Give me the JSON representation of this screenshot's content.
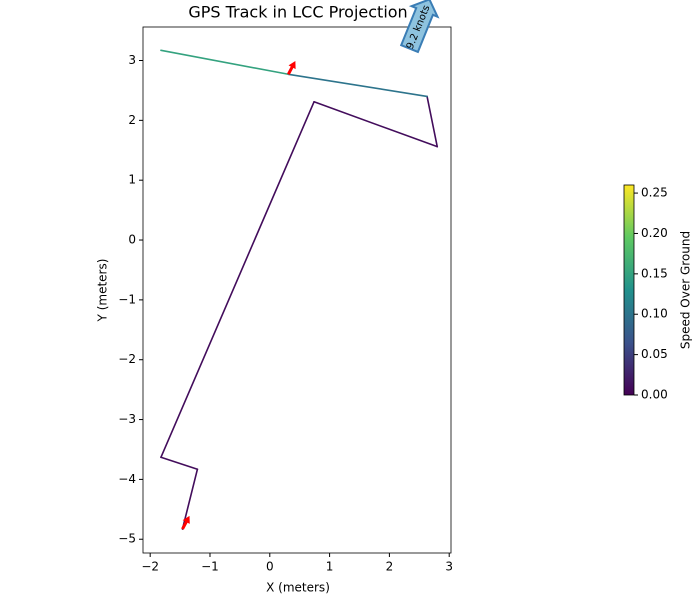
{
  "chart_data": {
    "type": "line",
    "title": "GPS Track in LCC Projection",
    "x_label": "X (meters)",
    "y_label": "Y (meters)",
    "series": [
      {
        "x": [
          -1.46,
          -1.21,
          -1.82,
          0.74,
          2.8,
          2.63,
          0.31,
          -1.82
        ],
        "y": [
          -4.83,
          -3.83,
          -3.63,
          2.31,
          1.56,
          2.4,
          2.77,
          3.17
        ],
        "speed": [
          0.01,
          0.01,
          0.01,
          0.01,
          0.01,
          0.01,
          0.1,
          0.15
        ]
      }
    ],
    "xlim": [
      -2.12,
      3.03
    ],
    "xticks": [
      {
        "value": -2,
        "label": "−2"
      },
      {
        "value": -1,
        "label": "−1"
      },
      0,
      1,
      2,
      3
    ],
    "ylim": [
      -5.23,
      3.56
    ],
    "yticks": [
      {
        "value": -5,
        "label": "−5"
      },
      {
        "value": -4,
        "label": "−4"
      },
      {
        "value": -3,
        "label": "−3"
      },
      {
        "value": -2,
        "label": "−2"
      },
      {
        "value": -1,
        "label": "−1"
      },
      0,
      1,
      2,
      3
    ],
    "colorbar": {
      "label": "Speed Over Ground",
      "colormap": "viridis",
      "clim": [
        0,
        0.26
      ],
      "ticks": [
        {
          "value": 0,
          "label": "0.00"
        },
        {
          "value": 0.05,
          "label": "0.05"
        },
        {
          "value": 0.1,
          "label": "0.10"
        },
        {
          "value": 0.15,
          "label": "0.15"
        },
        {
          "value": 0.2,
          "label": "0.20"
        },
        {
          "value": 0.25,
          "label": "0.25"
        }
      ]
    },
    "heading_arrows": {
      "color": "red",
      "points": [
        {
          "x": 0.31,
          "y": 2.77
        },
        {
          "x": -1.46,
          "y": -4.83
        }
      ]
    },
    "annotation": {
      "text": "9.2 knots",
      "x": 2.5,
      "y": 2.5
    }
  }
}
